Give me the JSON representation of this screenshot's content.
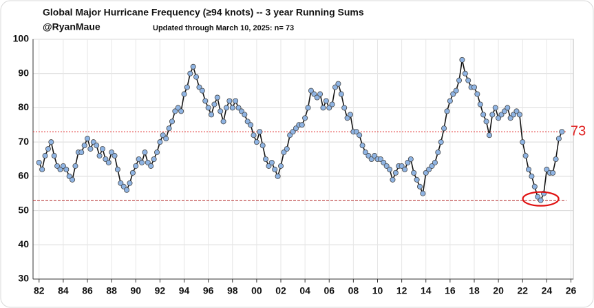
{
  "chart_data": {
    "type": "line",
    "title": "Global Major Hurricane Frequency (≥94 knots)  -- 3 year Running Sums",
    "subtitle": "@RyanMaue",
    "note": "Updated through March 10, 2025:  n= 73",
    "x": [
      1982,
      1982.25,
      1982.5,
      1982.75,
      1983,
      1983.25,
      1983.5,
      1983.75,
      1984,
      1984.25,
      1984.5,
      1984.75,
      1985,
      1985.25,
      1985.5,
      1985.75,
      1986,
      1986.25,
      1986.5,
      1986.75,
      1987,
      1987.25,
      1987.5,
      1987.75,
      1988,
      1988.25,
      1988.5,
      1988.75,
      1989,
      1989.25,
      1989.5,
      1989.75,
      1990,
      1990.25,
      1990.5,
      1990.75,
      1991,
      1991.25,
      1991.5,
      1991.75,
      1992,
      1992.25,
      1992.5,
      1992.75,
      1993,
      1993.25,
      1993.5,
      1993.75,
      1994,
      1994.25,
      1994.5,
      1994.75,
      1995,
      1995.25,
      1995.5,
      1995.75,
      1996,
      1996.25,
      1996.5,
      1996.75,
      1997,
      1997.25,
      1997.5,
      1997.75,
      1998,
      1998.25,
      1998.5,
      1998.75,
      1999,
      1999.25,
      1999.5,
      1999.75,
      2000,
      2000.25,
      2000.5,
      2000.75,
      2001,
      2001.25,
      2001.5,
      2001.75,
      2002,
      2002.25,
      2002.5,
      2002.75,
      2003,
      2003.25,
      2003.5,
      2003.75,
      2004,
      2004.25,
      2004.5,
      2004.75,
      2005,
      2005.25,
      2005.5,
      2005.75,
      2006,
      2006.25,
      2006.5,
      2006.75,
      2007,
      2007.25,
      2007.5,
      2007.75,
      2008,
      2008.25,
      2008.5,
      2008.75,
      2009,
      2009.25,
      2009.5,
      2009.75,
      2010,
      2010.25,
      2010.5,
      2010.75,
      2011,
      2011.25,
      2011.5,
      2011.75,
      2012,
      2012.25,
      2012.5,
      2012.75,
      2013,
      2013.25,
      2013.5,
      2013.75,
      2014,
      2014.25,
      2014.5,
      2014.75,
      2015,
      2015.25,
      2015.5,
      2015.75,
      2016,
      2016.25,
      2016.5,
      2016.75,
      2017,
      2017.25,
      2017.5,
      2017.75,
      2018,
      2018.25,
      2018.5,
      2018.75,
      2019,
      2019.25,
      2019.5,
      2019.75,
      2020,
      2020.25,
      2020.5,
      2020.75,
      2021,
      2021.25,
      2021.5,
      2021.75,
      2022,
      2022.25,
      2022.5,
      2022.75,
      2023,
      2023.25,
      2023.5,
      2023.75,
      2024,
      2024.25,
      2024.5,
      2024.75,
      2025,
      2025.25
    ],
    "series": [
      {
        "name": "Major hurricanes",
        "color": "#8fb4e3",
        "line_color": "#111111",
        "values": [
          64,
          62,
          66,
          68,
          70,
          66,
          63,
          62,
          63,
          62,
          60,
          59,
          63,
          67,
          67,
          69,
          71,
          68,
          70,
          69,
          66,
          68,
          65,
          64,
          67,
          66,
          62,
          58,
          57,
          56,
          58,
          61,
          63,
          65,
          64,
          67,
          64,
          63,
          65,
          67,
          70,
          72,
          71,
          74,
          76,
          79,
          80,
          79,
          84,
          86,
          90,
          92,
          89,
          86,
          85,
          82,
          80,
          78,
          81,
          83,
          79,
          76,
          80,
          82,
          80,
          82,
          80,
          79,
          78,
          76,
          75,
          72,
          70,
          73,
          69,
          65,
          63,
          64,
          62,
          60,
          63,
          67,
          68,
          72,
          73,
          74,
          75,
          75,
          77,
          80,
          85,
          84,
          83,
          84,
          80,
          82,
          80,
          81,
          86,
          87,
          84,
          80,
          77,
          78,
          73,
          73,
          72,
          69,
          67,
          66,
          65,
          66,
          65,
          65,
          64,
          63,
          62,
          59,
          61,
          63,
          63,
          62,
          64,
          65,
          61,
          59,
          57,
          55,
          61,
          62,
          63,
          64,
          67,
          70,
          74,
          79,
          82,
          84,
          85,
          88,
          94,
          90,
          88,
          86,
          86,
          84,
          81,
          78,
          76,
          72,
          78,
          80,
          77,
          78,
          79,
          80,
          77,
          78,
          79,
          78,
          70,
          66,
          62,
          60,
          57,
          54,
          53,
          55,
          62,
          61,
          61,
          65,
          71,
          73
        ]
      }
    ],
    "reference_lines": [
      {
        "value": 73,
        "label": "73",
        "color": "#e02020"
      },
      {
        "value": 53,
        "color": "#b02020"
      }
    ],
    "xlim": [
      1981.5,
      2026.2
    ],
    "xticks": [
      {
        "value": 1982,
        "label": "82"
      },
      {
        "value": 1984,
        "label": "84"
      },
      {
        "value": 1986,
        "label": "86"
      },
      {
        "value": 1988,
        "label": "88"
      },
      {
        "value": 1990,
        "label": "90"
      },
      {
        "value": 1992,
        "label": "92"
      },
      {
        "value": 1994,
        "label": "94"
      },
      {
        "value": 1996,
        "label": "96"
      },
      {
        "value": 1998,
        "label": "98"
      },
      {
        "value": 2000,
        "label": "00"
      },
      {
        "value": 2002,
        "label": "02"
      },
      {
        "value": 2004,
        "label": "04"
      },
      {
        "value": 2006,
        "label": "06"
      },
      {
        "value": 2008,
        "label": "08"
      },
      {
        "value": 2010,
        "label": "10"
      },
      {
        "value": 2012,
        "label": "12"
      },
      {
        "value": 2014,
        "label": "14"
      },
      {
        "value": 2016,
        "label": "16"
      },
      {
        "value": 2018,
        "label": "18"
      },
      {
        "value": 2020,
        "label": "20"
      },
      {
        "value": 2022,
        "label": "22"
      },
      {
        "value": 2024,
        "label": "24"
      },
      {
        "value": 2026,
        "label": "26"
      }
    ],
    "ylim": [
      30,
      100
    ],
    "yticks": [
      30,
      40,
      50,
      60,
      70,
      80,
      90,
      100
    ],
    "grid": true
  }
}
